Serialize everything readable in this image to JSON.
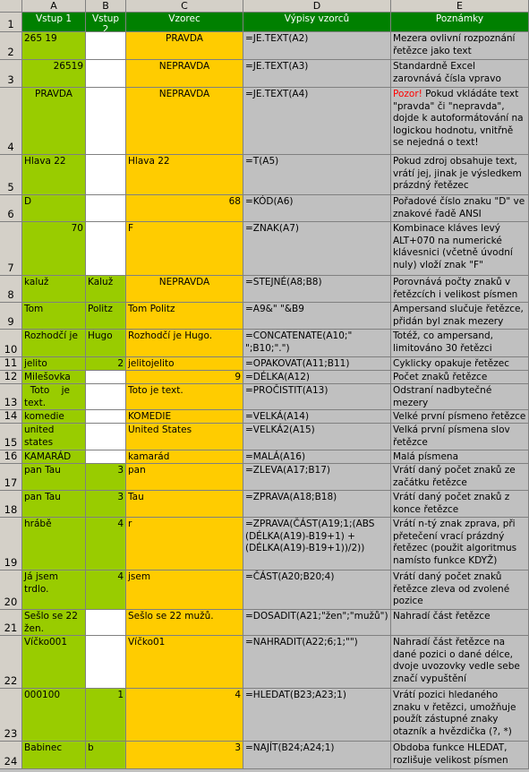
{
  "column_letters": [
    "A",
    "B",
    "C",
    "D",
    "E"
  ],
  "headers": {
    "row_number": "1",
    "a": "Vstup 1",
    "b": "Vstup 2",
    "c": "Vzorec",
    "d": "Výpisy vzorců",
    "e": "Poznámky"
  },
  "colors": {
    "header_green": "#008000",
    "input_green": "#99cc00",
    "formula_orange": "#ffcc00",
    "grid_gray": "#c0c0c0",
    "warning_red": "#ff0000"
  },
  "rows": [
    {
      "n": "2",
      "h": 31,
      "a": "265 19",
      "a_align": "left",
      "b": "",
      "b_align": "right",
      "c": "PRAVDA",
      "c_align": "center",
      "d": "=JE.TEXT(A2)",
      "e": "Mezera ovlivní rozpoznání řetězce jako text"
    },
    {
      "n": "3",
      "h": 31,
      "a": "26519",
      "a_align": "right",
      "b": "",
      "b_align": "right",
      "c": "NEPRAVDA",
      "c_align": "center",
      "d": "=JE.TEXT(A3)",
      "e": "Standardně Excel zarovnává čísla vpravo"
    },
    {
      "n": "4",
      "h": 75,
      "a": "PRAVDA",
      "a_align": "center",
      "b": "",
      "b_align": "right",
      "c": "NEPRAVDA",
      "c_align": "center",
      "d": "=JE.TEXT(A4)",
      "e_warn": "Pozor!",
      "e": " Pokud vkládáte text \"pravda\" či \"nepravda\", dojde k autoformátování na logickou hodnotu, vnitřně se nejedná o text!"
    },
    {
      "n": "5",
      "h": 45,
      "a": "Hlava 22",
      "a_align": "left",
      "b": "",
      "b_align": "right",
      "c": "Hlava 22",
      "c_align": "left",
      "d": "=T(A5)",
      "e": "Pokud zdroj obsahuje text, vrátí jej, jinak je výsledkem prázdný řetězec"
    },
    {
      "n": "6",
      "h": 30,
      "a": "D",
      "a_align": "left",
      "b": "",
      "b_align": "right",
      "c": "68",
      "c_align": "right",
      "d": "=KÓD(A6)",
      "e": "Pořadové číslo znaku \"D\" ve znakové řadě ANSI"
    },
    {
      "n": "7",
      "h": 60,
      "a": "70",
      "a_align": "right",
      "b": "",
      "b_align": "right",
      "c": "F",
      "c_align": "left",
      "d": "=ZNAK(A7)",
      "e": "Kombinace kláves levý ALT+070 na numerické klávesnici (včetně úvodní nuly) vloží znak \"F\""
    },
    {
      "n": "8",
      "h": 30,
      "a": "kaluž",
      "a_align": "left",
      "b": "Kaluž",
      "b_align": "left",
      "c": "NEPRAVDA",
      "c_align": "center",
      "d": "=STEJNÉ(A8;B8)",
      "e": "Porovnává počty znaků v řetězcích i velikost písmen"
    },
    {
      "n": "9",
      "h": 30,
      "a": "Tom",
      "a_align": "left",
      "b": "Politz",
      "b_align": "left",
      "c": "Tom Politz",
      "c_align": "left",
      "d": "=A9&\" \"&B9",
      "e": "Ampersand slučuje řetězce, přidán byl znak mezery"
    },
    {
      "n": "10",
      "h": 31,
      "a": "Rozhodčí je",
      "a_align": "left",
      "b": "Hugo",
      "b_align": "left",
      "c": "Rozhodčí je Hugo.",
      "c_align": "left",
      "d": "=CONCATENATE(A10;\" \";B10;\".\")",
      "e": "Totéž, co ampersand, limitováno 30 řetězci"
    },
    {
      "n": "11",
      "h": 15,
      "a": "jelito",
      "a_align": "left",
      "b": "2",
      "b_align": "right",
      "c": "jelitojelito",
      "c_align": "left",
      "d": "=OPAKOVAT(A11;B11)",
      "e": "Cyklicky opakuje řetězec"
    },
    {
      "n": "12",
      "h": 15,
      "a": "Milešovka",
      "a_align": "left",
      "b": "",
      "b_align": "right",
      "c": "9",
      "c_align": "right",
      "d": "=DÉLKA(A12)",
      "e": "Počet znaků řetězce"
    },
    {
      "n": "13",
      "h": 29,
      "a": "  Toto    je text.",
      "a_align": "left",
      "b": "",
      "b_align": "right",
      "c": "Toto je text.",
      "c_align": "left",
      "d": "=PROČISTIT(A13)",
      "e": "Odstraní nadbytečné mezery"
    },
    {
      "n": "14",
      "h": 15,
      "a": "komedie",
      "a_align": "left",
      "b": "",
      "b_align": "right",
      "c": "KOMEDIE",
      "c_align": "left",
      "d": "=VELKÁ(A14)",
      "e": "Velké první písmeno řetězce"
    },
    {
      "n": "15",
      "h": 30,
      "a": "united states",
      "a_align": "left",
      "b": "",
      "b_align": "right",
      "c": "United States",
      "c_align": "left",
      "d": "=VELKÁ2(A15)",
      "e": "Velká první písmena slov řetězce"
    },
    {
      "n": "16",
      "h": 15,
      "a": "KAMARÁD",
      "a_align": "left",
      "b": "",
      "b_align": "right",
      "c": "kamarád",
      "c_align": "left",
      "d": "=MALÁ(A16)",
      "e": "Malá písmena"
    },
    {
      "n": "17",
      "h": 30,
      "a": "pan Tau",
      "a_align": "left",
      "b": "3",
      "b_align": "right",
      "c": "pan",
      "c_align": "left",
      "d": "=ZLEVA(A17;B17)",
      "e": "Vrátí daný počet znaků ze začátku řetězce"
    },
    {
      "n": "18",
      "h": 30,
      "a": "pan Tau",
      "a_align": "left",
      "b": "3",
      "b_align": "right",
      "c": "Tau",
      "c_align": "left",
      "d": "=ZPRAVA(A18;B18)",
      "e": "Vrátí daný počet znaků z konce řetězce"
    },
    {
      "n": "19",
      "h": 59,
      "a": "hrábě",
      "a_align": "left",
      "b": "4",
      "b_align": "right",
      "c": "r",
      "c_align": "left",
      "d": "=ZPRAVA(ČÁST(A19;1;(ABS (DÉLKA(A19)-B19+1) +(DÉLKA(A19)-B19+1))/2))",
      "e": "Vrátí n-tý znak zprava, při přetečení vrací prázdný řetězec (použit algoritmus namísto funkce KDYŽ)"
    },
    {
      "n": "20",
      "h": 44,
      "a": "Já jsem trdlo.",
      "a_align": "left",
      "b": "4",
      "b_align": "right",
      "c": "jsem",
      "c_align": "left",
      "d": "=ČÁST(A20;B20;4)",
      "e": "Vrátí daný počet znaků řetězce zleva od zvolené pozice"
    },
    {
      "n": "21",
      "h": 29,
      "a": "Sešlo se 22 žen.",
      "a_align": "left",
      "b": "",
      "b_align": "right",
      "c": "Sešlo se 22 mužů.",
      "c_align": "left",
      "d": "=DOSADIT(A21;\"žen\";\"mužů\")",
      "e": "Nahradí část řetězce"
    },
    {
      "n": "22",
      "h": 59,
      "a": "Víčko001",
      "a_align": "left",
      "b": "",
      "b_align": "right",
      "c": "Víčko01",
      "c_align": "left",
      "d": "=NAHRADIT(A22;6;1;\"\")",
      "e": "Nahradí část řetězce na dané pozici o dané délce, dvoje uvozovky vedle sebe značí vypuštění"
    },
    {
      "n": "23",
      "h": 59,
      "a": "000100",
      "a_align": "left",
      "b": "1",
      "b_align": "right",
      "c": "4",
      "c_align": "right",
      "d": "=HLEDAT(B23;A23;1)",
      "e": "Vrátí pozici hledaného znaku v řetězci, umožňuje použít zástupné znaky otazník a hvězdička (?, *)"
    },
    {
      "n": "24",
      "h": 31,
      "a": "Babinec",
      "a_align": "left",
      "b": "b",
      "b_align": "left",
      "c": "3",
      "c_align": "right",
      "d": "=NAJÍT(B24;A24;1)",
      "e": "Obdoba funkce HLEDAT, rozlišuje velikost písmen"
    }
  ]
}
